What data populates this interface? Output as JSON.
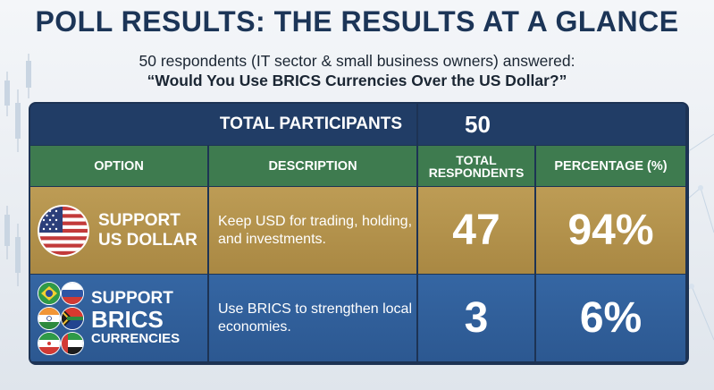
{
  "header": {
    "title": "POLL RESULTS: THE RESULTS AT A GLANCE",
    "subtitle": "50 respondents (IT sector & small business owners) answered:",
    "question": "“Would You Use BRICS Currencies Over the US Dollar?”"
  },
  "table": {
    "total_label": "TOTAL PARTICIPANTS",
    "total_value": "50",
    "columns": [
      "OPTION",
      "DESCRIPTION",
      "TOTAL RESPONDENTS",
      "PERCENTAGE (%)"
    ],
    "columns_h3": [
      "TOTAL",
      "RESPONDENTS"
    ],
    "rows": [
      {
        "option_line1": "SUPPORT",
        "option_line2": "US DOLLAR",
        "description": "Keep USD for trading, holding, and investments.",
        "respondents": "47",
        "percentage": "94%",
        "icon": "us-flag-icon",
        "color": "#b3924c"
      },
      {
        "option_line1": "SUPPORT",
        "option_line2": "BRICS",
        "option_line3": "CURRENCIES",
        "description": "Use BRICS to strengthen local economies.",
        "respondents": "3",
        "percentage": "6%",
        "icons": [
          "brazil-flag-icon",
          "russia-flag-icon",
          "india-flag-icon",
          "south-africa-flag-icon",
          "iran-flag-icon",
          "uae-flag-icon"
        ],
        "color": "#305f9a"
      }
    ]
  },
  "colors": {
    "title": "#1c3557",
    "header_row": "#3e7b4f",
    "top_row": "#213d66"
  }
}
